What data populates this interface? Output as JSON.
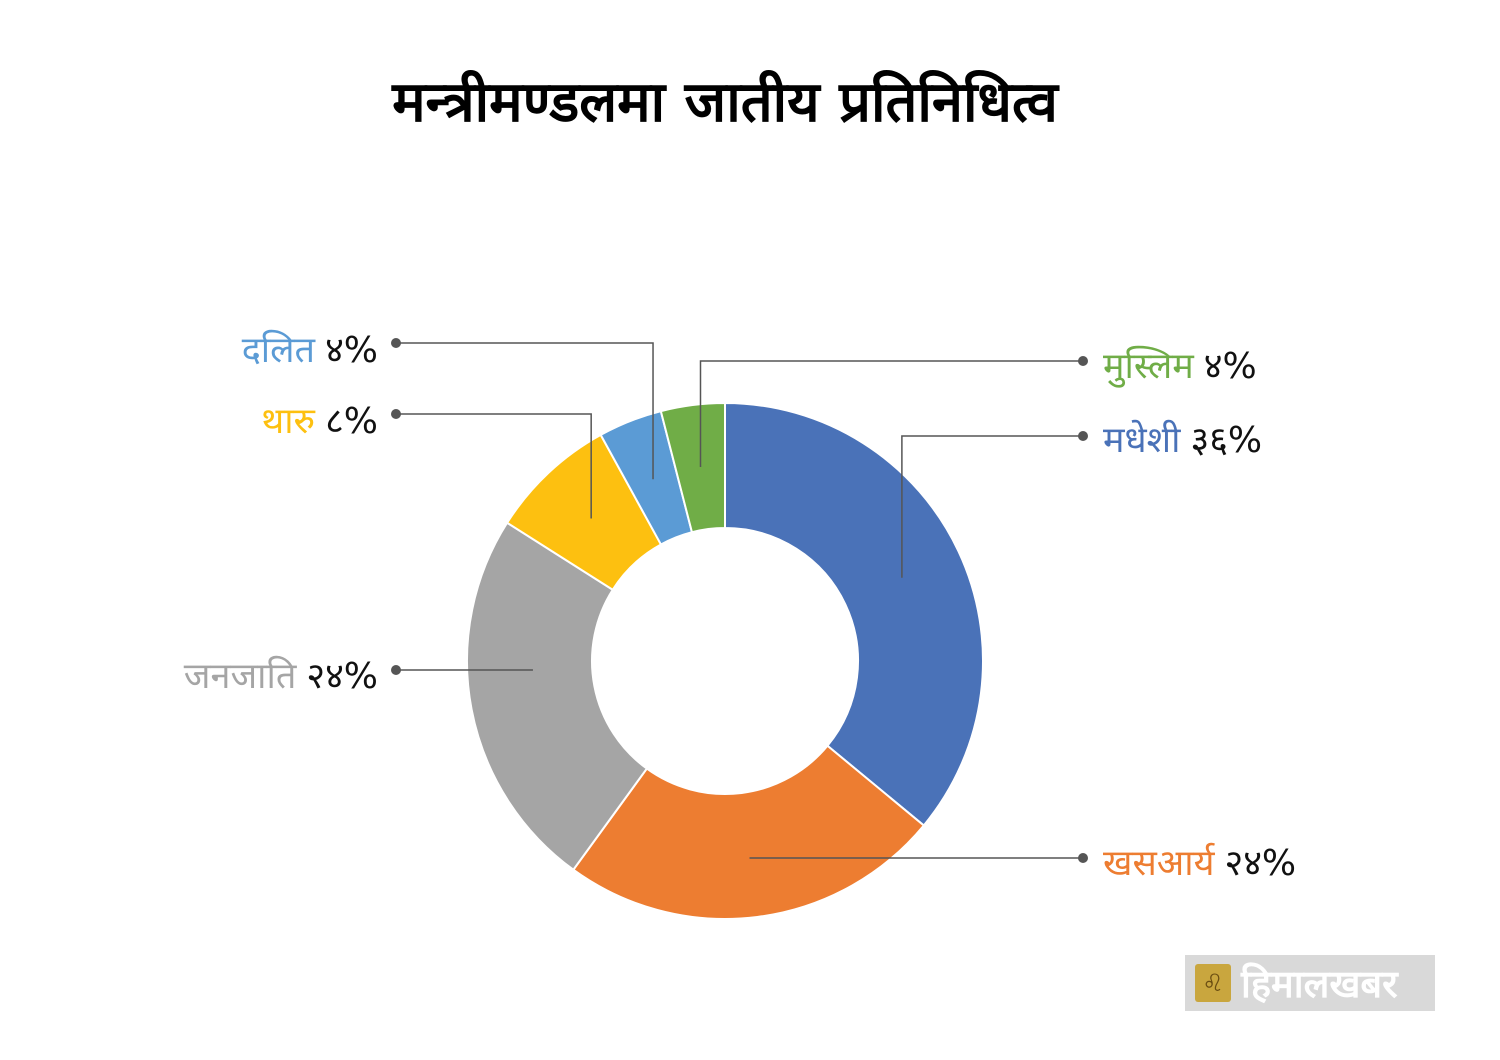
{
  "chart_data": {
    "type": "pie",
    "title": "मन्त्रीमण्डलमा जातीय प्रतिनिधित्व",
    "slices": [
      {
        "label": "मधेशी",
        "value": 36,
        "value_label": "३६%",
        "color": "#4a72b8"
      },
      {
        "label": "खसआर्य",
        "value": 24,
        "value_label": "२४%",
        "color": "#ed7d31"
      },
      {
        "label": "जनजाति",
        "value": 24,
        "value_label": "२४%",
        "color": "#a5a5a5"
      },
      {
        "label": "थारु",
        "value": 8,
        "value_label": "८%",
        "color": "#fdc010"
      },
      {
        "label": "दलित",
        "value": 4,
        "value_label": "४%",
        "color": "#5b9bd5"
      },
      {
        "label": "मुस्लिम",
        "value": 4,
        "value_label": "४%",
        "color": "#70ad47"
      }
    ]
  },
  "logo": {
    "text": "हिमालखबर",
    "icon": "lion-emblem-icon"
  }
}
